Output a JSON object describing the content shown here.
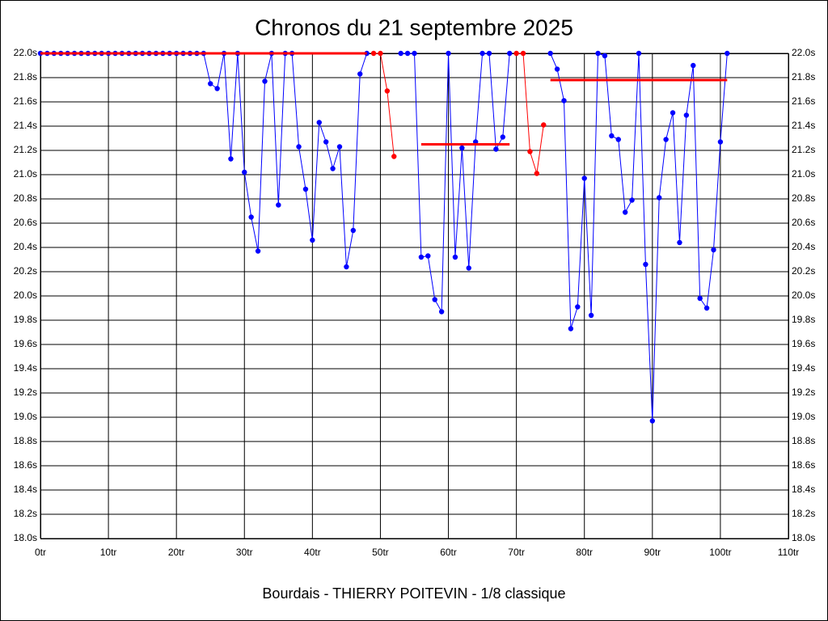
{
  "chart_data": {
    "type": "line",
    "title": "Chronos du 21 septembre 2025",
    "xlabel": "Bourdais - THIERRY POITEVIN - 1/8 classique",
    "x": [
      0,
      1,
      2,
      3,
      4,
      5,
      6,
      7,
      8,
      9,
      10,
      11,
      12,
      13,
      14,
      15,
      16,
      17,
      18,
      19,
      20,
      21,
      22,
      23,
      24,
      25,
      26,
      27,
      28,
      29,
      30,
      31,
      32,
      33,
      34,
      35,
      36,
      37,
      38,
      39,
      40,
      41,
      42,
      43,
      44,
      45,
      46,
      47,
      48,
      49,
      50,
      51,
      52,
      53,
      54,
      55,
      56,
      57,
      58,
      59,
      60,
      61,
      62,
      63,
      64,
      65,
      66,
      67,
      68,
      69,
      70,
      71,
      72,
      73,
      74,
      75,
      76,
      77,
      78,
      79,
      80,
      81,
      82,
      83,
      84,
      85,
      86,
      87,
      88,
      89,
      90,
      91,
      92,
      93,
      94,
      95,
      96,
      97,
      98,
      99,
      100,
      101
    ],
    "series": [
      {
        "color": "#0000ff",
        "values": [
          22.0,
          22.0,
          22.0,
          22.0,
          22.0,
          22.0,
          22.0,
          22.0,
          22.0,
          22.0,
          22.0,
          22.0,
          22.0,
          22.0,
          22.0,
          22.0,
          22.0,
          22.0,
          22.0,
          22.0,
          22.0,
          22.0,
          22.0,
          22.0,
          22.0,
          21.75,
          21.71,
          22.0,
          21.13,
          22.0,
          21.02,
          20.65,
          20.37,
          21.77,
          22.0,
          20.75,
          22.0,
          22.0,
          21.23,
          20.88,
          20.46,
          21.43,
          21.27,
          21.05,
          21.23,
          20.24,
          20.54,
          21.83,
          22.0,
          null,
          null,
          null,
          null,
          22.0,
          22.0,
          22.0,
          20.32,
          20.33,
          19.97,
          19.87,
          22.0,
          20.32,
          21.22,
          20.23,
          21.27,
          22.0,
          22.0,
          21.21,
          21.31,
          22.0,
          null,
          null,
          null,
          null,
          null,
          22.0,
          21.87,
          21.61,
          19.73,
          19.91,
          20.97,
          19.84,
          22.0,
          21.98,
          21.32,
          21.29,
          20.69,
          20.79,
          22.0,
          20.26,
          18.97,
          20.81,
          21.29,
          21.51,
          20.44,
          21.49,
          21.9,
          19.98,
          19.9,
          20.38,
          21.27,
          22.0
        ]
      },
      {
        "color": "#ff0000",
        "values": [
          null,
          null,
          null,
          null,
          null,
          null,
          null,
          null,
          null,
          null,
          null,
          null,
          null,
          null,
          null,
          null,
          null,
          null,
          null,
          null,
          null,
          null,
          null,
          null,
          null,
          null,
          null,
          null,
          null,
          null,
          null,
          null,
          null,
          null,
          null,
          null,
          null,
          null,
          null,
          null,
          null,
          null,
          null,
          null,
          null,
          null,
          null,
          null,
          null,
          22.0,
          22.0,
          21.69,
          21.15,
          null,
          null,
          null,
          null,
          null,
          null,
          null,
          null,
          null,
          null,
          null,
          null,
          null,
          null,
          null,
          null,
          null,
          22.0,
          22.0,
          21.19,
          21.01,
          21.41,
          null,
          null,
          null,
          null,
          null,
          null,
          null,
          null,
          null,
          null,
          null,
          null,
          null,
          null,
          null,
          null,
          null,
          null,
          null,
          null,
          null,
          null,
          null,
          null,
          null,
          null,
          null
        ]
      }
    ],
    "reference_lines": [
      {
        "from": 0,
        "to": 48,
        "value": 22.0,
        "color": "#ff0000"
      },
      {
        "from": 56,
        "to": 69,
        "value": 21.25,
        "color": "#ff0000"
      },
      {
        "from": 75,
        "to": 101,
        "value": 21.78,
        "color": "#ff0000"
      }
    ],
    "xlim": [
      0,
      110
    ],
    "ylim": [
      18.0,
      22.0
    ],
    "xticks": [
      {
        "value": 0,
        "label": "0tr"
      },
      {
        "value": 10,
        "label": "10tr"
      },
      {
        "value": 20,
        "label": "20tr"
      },
      {
        "value": 30,
        "label": "30tr"
      },
      {
        "value": 40,
        "label": "40tr"
      },
      {
        "value": 50,
        "label": "50tr"
      },
      {
        "value": 60,
        "label": "60tr"
      },
      {
        "value": 70,
        "label": "70tr"
      },
      {
        "value": 80,
        "label": "80tr"
      },
      {
        "value": 90,
        "label": "90tr"
      },
      {
        "value": 100,
        "label": "100tr"
      },
      {
        "value": 110,
        "label": "110tr"
      }
    ],
    "yticks": [
      {
        "value": 18.0,
        "label": "18.0s"
      },
      {
        "value": 18.2,
        "label": "18.2s"
      },
      {
        "value": 18.4,
        "label": "18.4s"
      },
      {
        "value": 18.6,
        "label": "18.6s"
      },
      {
        "value": 18.8,
        "label": "18.8s"
      },
      {
        "value": 19.0,
        "label": "19.0s"
      },
      {
        "value": 19.2,
        "label": "19.2s"
      },
      {
        "value": 19.4,
        "label": "19.4s"
      },
      {
        "value": 19.6,
        "label": "19.6s"
      },
      {
        "value": 19.8,
        "label": "19.8s"
      },
      {
        "value": 20.0,
        "label": "20.0s"
      },
      {
        "value": 20.2,
        "label": "20.2s"
      },
      {
        "value": 20.4,
        "label": "20.4s"
      },
      {
        "value": 20.6,
        "label": "20.6s"
      },
      {
        "value": 20.8,
        "label": "20.8s"
      },
      {
        "value": 21.0,
        "label": "21.0s"
      },
      {
        "value": 21.2,
        "label": "21.2s"
      },
      {
        "value": 21.4,
        "label": "21.4s"
      },
      {
        "value": 21.6,
        "label": "21.6s"
      },
      {
        "value": 21.8,
        "label": "21.8s"
      },
      {
        "value": 22.0,
        "label": "22.0s"
      }
    ],
    "grid": true
  }
}
